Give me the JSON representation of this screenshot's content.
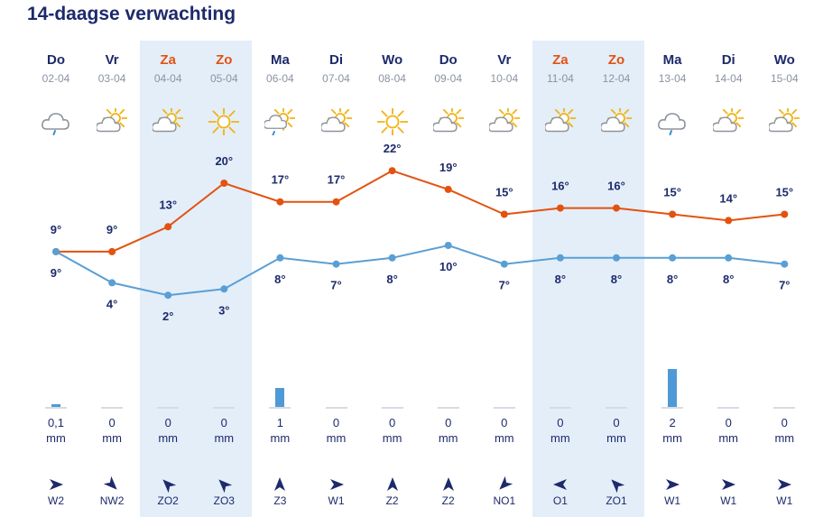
{
  "title": "14-daagse verwachting",
  "colors": {
    "max_line": "#e3520f",
    "min_line": "#5a9fd4",
    "weekend_band": "#e3eef9",
    "weekend_text": "#e3520f",
    "precip_bar": "#4f9ad6"
  },
  "days": [
    {
      "name": "Do",
      "date": "02-04",
      "weekend": false,
      "icon": "cloud-rain-icon",
      "precip": "0,1",
      "unit": "mm",
      "precip_mm": 0.1,
      "wind": "W2",
      "wind_dir": 90
    },
    {
      "name": "Vr",
      "date": "03-04",
      "weekend": false,
      "icon": "partly-sunny-icon",
      "precip": "0",
      "unit": "mm",
      "precip_mm": 0,
      "wind": "NW2",
      "wind_dir": 135
    },
    {
      "name": "Za",
      "date": "04-04",
      "weekend": true,
      "icon": "partly-sunny-icon",
      "precip": "0",
      "unit": "mm",
      "precip_mm": 0,
      "wind": "ZO2",
      "wind_dir": 315
    },
    {
      "name": "Zo",
      "date": "05-04",
      "weekend": true,
      "icon": "sun-icon",
      "precip": "0",
      "unit": "mm",
      "precip_mm": 0,
      "wind": "ZO3",
      "wind_dir": 315
    },
    {
      "name": "Ma",
      "date": "06-04",
      "weekend": false,
      "icon": "sun-shower-icon",
      "precip": "1",
      "unit": "mm",
      "precip_mm": 1,
      "wind": "Z3",
      "wind_dir": 0
    },
    {
      "name": "Di",
      "date": "07-04",
      "weekend": false,
      "icon": "partly-sunny-icon",
      "precip": "0",
      "unit": "mm",
      "precip_mm": 0,
      "wind": "W1",
      "wind_dir": 90
    },
    {
      "name": "Wo",
      "date": "08-04",
      "weekend": false,
      "icon": "sun-icon",
      "precip": "0",
      "unit": "mm",
      "precip_mm": 0,
      "wind": "Z2",
      "wind_dir": 0
    },
    {
      "name": "Do",
      "date": "09-04",
      "weekend": false,
      "icon": "partly-sunny-icon",
      "precip": "0",
      "unit": "mm",
      "precip_mm": 0,
      "wind": "Z2",
      "wind_dir": 0
    },
    {
      "name": "Vr",
      "date": "10-04",
      "weekend": false,
      "icon": "partly-sunny-icon",
      "precip": "0",
      "unit": "mm",
      "precip_mm": 0,
      "wind": "NO1",
      "wind_dir": 225
    },
    {
      "name": "Za",
      "date": "11-04",
      "weekend": true,
      "icon": "partly-sunny-icon",
      "precip": "0",
      "unit": "mm",
      "precip_mm": 0,
      "wind": "O1",
      "wind_dir": 270
    },
    {
      "name": "Zo",
      "date": "12-04",
      "weekend": true,
      "icon": "partly-sunny-icon",
      "precip": "0",
      "unit": "mm",
      "precip_mm": 0,
      "wind": "ZO1",
      "wind_dir": 315
    },
    {
      "name": "Ma",
      "date": "13-04",
      "weekend": false,
      "icon": "cloud-rain-icon",
      "precip": "2",
      "unit": "mm",
      "precip_mm": 2,
      "wind": "W1",
      "wind_dir": 90
    },
    {
      "name": "Di",
      "date": "14-04",
      "weekend": false,
      "icon": "partly-sunny-icon",
      "precip": "0",
      "unit": "mm",
      "precip_mm": 0,
      "wind": "W1",
      "wind_dir": 90
    },
    {
      "name": "Wo",
      "date": "15-04",
      "weekend": false,
      "icon": "partly-sunny-icon",
      "precip": "0",
      "unit": "mm",
      "precip_mm": 0,
      "wind": "W1",
      "wind_dir": 90
    }
  ],
  "chart_data": {
    "type": "line",
    "x": [
      "02-04",
      "03-04",
      "04-04",
      "05-04",
      "06-04",
      "07-04",
      "08-04",
      "09-04",
      "10-04",
      "11-04",
      "12-04",
      "13-04",
      "14-04",
      "15-04"
    ],
    "series": [
      {
        "values": [
          9,
          9,
          13,
          20,
          17,
          17,
          22,
          19,
          15,
          16,
          16,
          15,
          14,
          15
        ],
        "labels": [
          "9°",
          "9°",
          "13°",
          "20°",
          "17°",
          "17°",
          "22°",
          "19°",
          "15°",
          "16°",
          "16°",
          "15°",
          "14°",
          "15°"
        ]
      },
      {
        "values": [
          9,
          4,
          2,
          3,
          8,
          7,
          8,
          10,
          7,
          8,
          8,
          8,
          8,
          7
        ],
        "labels": [
          "9°",
          "4°",
          "2°",
          "3°",
          "8°",
          "7°",
          "8°",
          "10°",
          "7°",
          "8°",
          "8°",
          "8°",
          "8°",
          "7°"
        ]
      }
    ]
  }
}
